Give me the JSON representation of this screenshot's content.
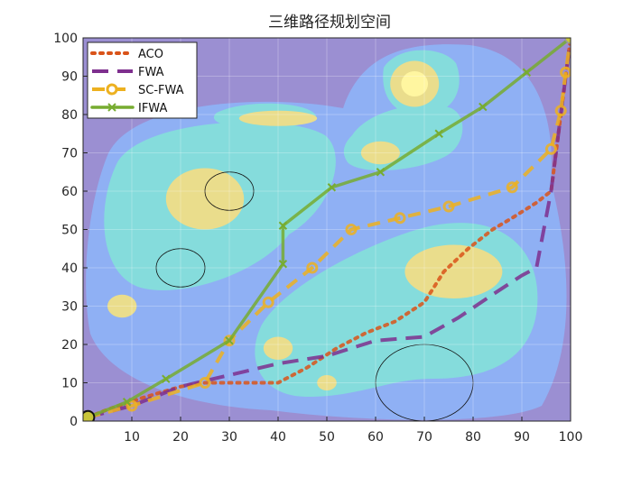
{
  "chart_data": {
    "type": "line",
    "title": "三维路径规划空间",
    "xlabel": "",
    "ylabel": "",
    "xlim": [
      0,
      100
    ],
    "ylim": [
      0,
      100
    ],
    "x_ticks": [
      10,
      20,
      30,
      40,
      50,
      60,
      70,
      80,
      90,
      100
    ],
    "y_ticks": [
      0,
      10,
      20,
      30,
      40,
      50,
      60,
      70,
      80,
      90,
      100
    ],
    "grid": true,
    "legend_position": "top-left",
    "background": {
      "type": "filled-contour",
      "levels_colors": [
        "#9b8fd2",
        "#8fb0f4",
        "#85dcdc",
        "#eadd8c",
        "#fff6a0"
      ],
      "peaks": [
        {
          "x": 25,
          "y": 58,
          "rx": 8,
          "ry": 8
        },
        {
          "x": 76,
          "y": 39,
          "rx": 10,
          "ry": 7
        },
        {
          "x": 68,
          "y": 88,
          "rx": 5,
          "ry": 6
        },
        {
          "x": 8,
          "y": 30,
          "rx": 3,
          "ry": 3
        },
        {
          "x": 40,
          "y": 19,
          "rx": 3,
          "ry": 3
        },
        {
          "x": 50,
          "y": 10,
          "rx": 2,
          "ry": 2
        },
        {
          "x": 61,
          "y": 70,
          "rx": 4,
          "ry": 3
        },
        {
          "x": 40,
          "y": 79,
          "rx": 8,
          "ry": 2
        }
      ],
      "obstacles": [
        {
          "x": 30,
          "y": 60,
          "r": 5
        },
        {
          "x": 20,
          "y": 40,
          "r": 5
        },
        {
          "x": 70,
          "y": 10,
          "r": 10
        }
      ]
    },
    "series": [
      {
        "name": "ACO",
        "color": "#d95319",
        "style": "dotted",
        "marker": "none",
        "x": [
          1,
          5,
          12,
          20,
          25,
          30,
          35,
          40,
          46,
          52,
          58,
          64,
          70,
          74,
          79,
          84,
          88,
          93,
          96,
          98,
          100
        ],
        "y": [
          1,
          3,
          6,
          9,
          10,
          10,
          10,
          10,
          14,
          19,
          23,
          26,
          31,
          39,
          45,
          50,
          53,
          57,
          60,
          80,
          100
        ]
      },
      {
        "name": "FWA",
        "color": "#7e2f8e",
        "style": "dashed",
        "marker": "none",
        "x": [
          1,
          10,
          20,
          30,
          40,
          50,
          60,
          70,
          77,
          84,
          90,
          93,
          96,
          98,
          100
        ],
        "y": [
          1,
          4,
          9,
          12,
          15,
          17,
          21,
          22,
          27,
          33,
          38,
          40,
          60,
          80,
          100
        ]
      },
      {
        "name": "SC-FWA",
        "color": "#edb120",
        "style": "dashed",
        "marker": "circle",
        "x": [
          1,
          10,
          25,
          30,
          38,
          47,
          55,
          65,
          75,
          88,
          96,
          98,
          99,
          100
        ],
        "y": [
          1,
          4,
          10,
          21,
          31,
          40,
          50,
          53,
          56,
          61,
          71,
          81,
          91,
          100
        ]
      },
      {
        "name": "IFWA",
        "color": "#77ac30",
        "style": "solid",
        "marker": "x",
        "x": [
          1,
          9,
          17,
          30,
          41,
          41,
          51,
          61,
          73,
          82,
          91,
          100
        ],
        "y": [
          1,
          5,
          11,
          21,
          41,
          51,
          61,
          65,
          75,
          82,
          91,
          100
        ]
      }
    ]
  }
}
